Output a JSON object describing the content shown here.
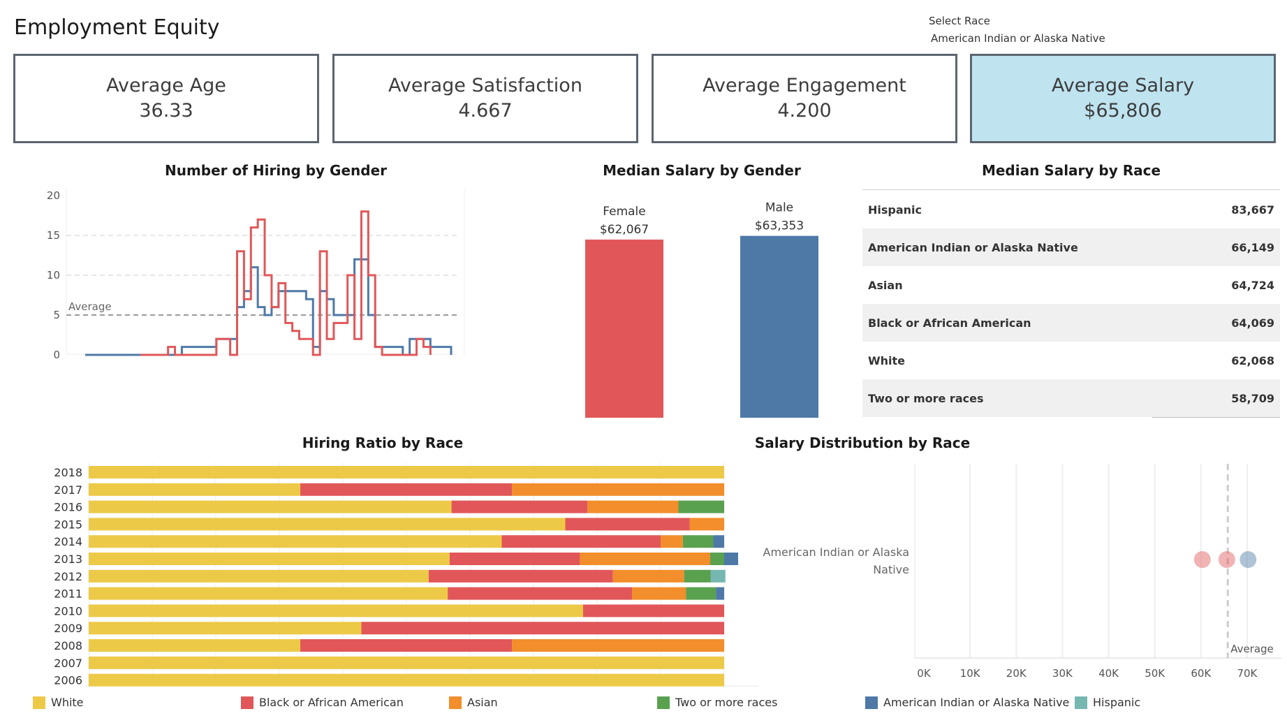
{
  "title": "Employment Equity",
  "filter": {
    "label": "Select Race",
    "value": "American Indian or Alaska Native"
  },
  "kpis": [
    {
      "label": "Average Age",
      "value": "36.33"
    },
    {
      "label": "Average Satisfaction",
      "value": "4.667"
    },
    {
      "label": "Average Engagement",
      "value": "4.200"
    },
    {
      "label": "Average Salary",
      "value": "$65,806"
    }
  ],
  "colors": {
    "female": "#e15759",
    "male": "#4e79a7",
    "White": "#edc948",
    "Black or African American": "#e15759",
    "Asian": "#f28e2b",
    "Two or more races": "#59a14f",
    "American Indian or Alaska Native": "#4e79a7",
    "Hispanic": "#76b7b2",
    "kpi_active_bg": "#bfe4f0"
  },
  "chart_data": [
    {
      "type": "line",
      "title": "Number of Hiring by Gender",
      "ylim": [
        0,
        20
      ],
      "yticks": [
        "0",
        "5",
        "10",
        "15",
        "20"
      ],
      "reference_line": {
        "label": "Average",
        "value": 5
      },
      "series": [
        {
          "key": "male",
          "values": [
            0,
            0,
            0,
            0,
            0,
            0,
            0,
            0,
            0,
            0,
            0,
            0,
            0,
            0,
            1,
            1,
            1,
            1,
            1,
            2,
            2,
            2,
            6,
            8,
            11,
            6,
            5,
            6,
            8,
            8,
            8,
            8,
            7,
            1,
            8,
            7,
            5,
            5,
            5,
            12,
            12,
            5,
            1,
            1,
            1,
            1,
            0,
            2,
            2,
            2,
            1,
            1,
            1,
            0
          ]
        },
        {
          "key": "female",
          "values": [
            null,
            null,
            null,
            null,
            null,
            null,
            null,
            null,
            0,
            0,
            0,
            0,
            1,
            0,
            0,
            0,
            0,
            0,
            0,
            2,
            2,
            0,
            13,
            7,
            16,
            17,
            10,
            6,
            9,
            4,
            3,
            2,
            2,
            0,
            13,
            2,
            4,
            4,
            10,
            2,
            18,
            10,
            1,
            0,
            0,
            0,
            0,
            0,
            2,
            1,
            0,
            null,
            null,
            null
          ]
        }
      ]
    },
    {
      "type": "bar",
      "title": "Median Salary by Gender",
      "categories": [
        "Female",
        "Male"
      ],
      "values": [
        62067,
        63353
      ],
      "labels": [
        "$62,067",
        "$63,353"
      ]
    },
    {
      "type": "table",
      "title": "Median Salary by Race",
      "rows": [
        {
          "race": "Hispanic",
          "value": "83,667"
        },
        {
          "race": "American Indian or Alaska Native",
          "value": "66,149"
        },
        {
          "race": "Asian",
          "value": "64,724"
        },
        {
          "race": "Black or African American",
          "value": "64,069"
        },
        {
          "race": "White",
          "value": "62,068"
        },
        {
          "race": "Two or more races",
          "value": "58,709"
        }
      ]
    },
    {
      "type": "bar",
      "stacked": true,
      "normalized": true,
      "title": "Hiring Ratio by Race",
      "categories": [
        "2018",
        "2017",
        "2016",
        "2015",
        "2014",
        "2013",
        "2012",
        "2011",
        "2010",
        "2009",
        "2008",
        "2007",
        "2006"
      ],
      "series": [
        {
          "name": "White",
          "values": [
            1,
            0.333,
            0.571,
            0.75,
            0.65,
            0.568,
            0.535,
            0.565,
            0.778,
            0.429,
            0.333,
            1,
            1
          ]
        },
        {
          "name": "Black or African American",
          "values": [
            0,
            0.333,
            0.214,
            0.196,
            0.25,
            0.205,
            0.29,
            0.29,
            0.222,
            0.571,
            0.333,
            0,
            0
          ]
        },
        {
          "name": "Asian",
          "values": [
            0,
            0.334,
            0.143,
            0.054,
            0.035,
            0.205,
            0.112,
            0.085,
            0,
            0,
            0.334,
            0,
            0
          ]
        },
        {
          "name": "Two or more races",
          "values": [
            0,
            0,
            0.072,
            0,
            0.048,
            0.022,
            0.042,
            0.047,
            0,
            0,
            0,
            0,
            0
          ]
        },
        {
          "name": "American Indian or Alaska Native",
          "values": [
            0,
            0,
            0,
            0,
            0.017,
            0.022,
            0,
            0.013,
            0,
            0,
            0,
            0,
            0
          ]
        },
        {
          "name": "Hispanic",
          "values": [
            0,
            0,
            0,
            0,
            0,
            0,
            0.023,
            0,
            0,
            0,
            0,
            0,
            0
          ]
        }
      ]
    },
    {
      "type": "scatter",
      "title": "Salary Distribution by Race",
      "category": "American Indian or Alaska Native",
      "xlim": [
        0,
        75000
      ],
      "xticks": [
        {
          "value": 0,
          "label": "0K"
        },
        {
          "value": 10000,
          "label": "10K"
        },
        {
          "value": 20000,
          "label": "20K"
        },
        {
          "value": 30000,
          "label": "30K"
        },
        {
          "value": 40000,
          "label": "40K"
        },
        {
          "value": 50000,
          "label": "50K"
        },
        {
          "value": 60000,
          "label": "60K"
        },
        {
          "value": 70000,
          "label": "70K"
        }
      ],
      "reference_line": {
        "label": "Average",
        "value": 65806
      },
      "points": [
        {
          "x": 60300,
          "key": "female"
        },
        {
          "x": 65600,
          "key": "female"
        },
        {
          "x": 70200,
          "key": "male"
        }
      ]
    }
  ],
  "legend": [
    "White",
    "Black or African American",
    "Asian",
    "Two or more races",
    "American Indian or Alaska Native",
    "Hispanic"
  ]
}
